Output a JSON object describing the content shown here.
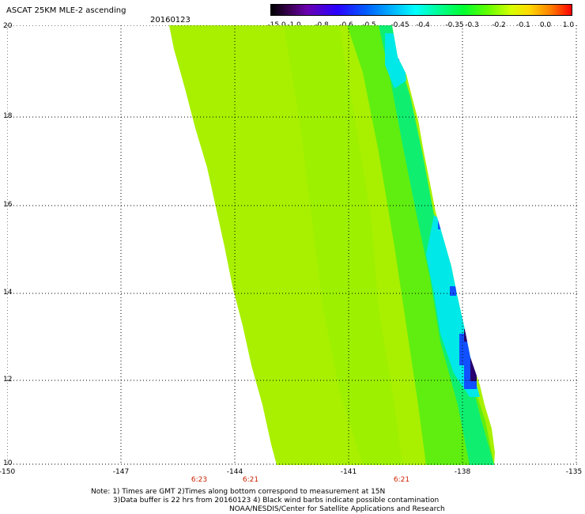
{
  "header": {
    "title": "ASCAT 25KM MLE-2 ascending",
    "date": "20160123"
  },
  "colorbar": {
    "labels": [
      "-15.0",
      "-1.0",
      "-0.8",
      "-0.6",
      "-0.5",
      "-0.45",
      "-0.4",
      "-0.35",
      "-0.3",
      "-0.2",
      "-0.1",
      "0.0",
      "1.0"
    ]
  },
  "map": {
    "lon_range": [
      -150,
      -135
    ],
    "lat_range": [
      10,
      20
    ],
    "x_ticks": [
      "-150",
      "-147",
      "-144",
      "-141",
      "-138",
      "-135"
    ],
    "y_ticks": [
      "20",
      "18",
      "16",
      "14",
      "12",
      "10"
    ],
    "time_labels": [
      "6:23",
      "6:21",
      "6:21"
    ],
    "swath_colors": {
      "main": "#a8f000",
      "mid": "#60ee10",
      "edge": "#10ee70",
      "cyan": "#00e8e8",
      "blue": "#1050ff",
      "dark": "#2a0070"
    }
  },
  "notes": {
    "line1": "Note: 1) Times are GMT 2)Times along bottom correspond to measurement at 15N",
    "line2": "3)Data buffer is 22 hrs from 20160123 4) Black wind barbs indicate possible contamination",
    "line3": "NOAA/NESDIS/Center for Satellite Applications and Research"
  }
}
